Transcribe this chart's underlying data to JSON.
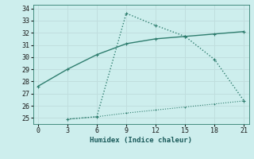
{
  "line1_x": [
    0,
    3,
    6,
    9,
    12,
    15,
    18,
    21
  ],
  "line1_y": [
    27.6,
    29.0,
    30.2,
    31.1,
    31.5,
    31.7,
    31.9,
    32.1
  ],
  "line2_x": [
    3,
    6,
    9,
    12,
    15,
    18,
    21
  ],
  "line2_y": [
    24.9,
    25.1,
    33.6,
    32.6,
    31.7,
    29.8,
    26.4
  ],
  "line3_x": [
    3,
    6,
    9,
    12,
    15,
    18,
    21
  ],
  "line3_y": [
    24.9,
    25.1,
    25.4,
    25.65,
    25.9,
    26.15,
    26.4
  ],
  "color": "#2e7d6e",
  "bg_color": "#cdeeed",
  "grid_color": "#c0dede",
  "xlabel": "Humidex (Indice chaleur)",
  "xlim": [
    -0.5,
    21.5
  ],
  "ylim": [
    24.5,
    34.3
  ],
  "xticks": [
    0,
    3,
    6,
    9,
    12,
    15,
    18,
    21
  ],
  "yticks": [
    25,
    26,
    27,
    28,
    29,
    30,
    31,
    32,
    33,
    34
  ]
}
